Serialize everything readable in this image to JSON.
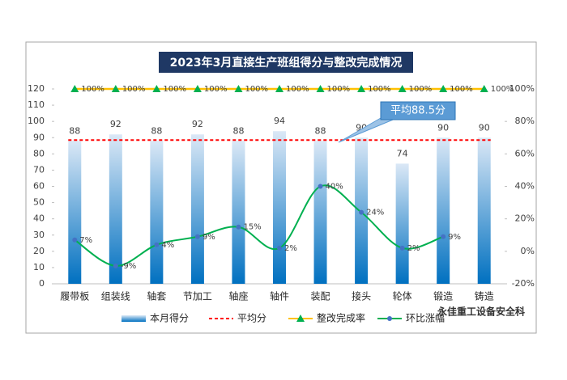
{
  "chart_data": {
    "type": "bar",
    "title": "2023年3月直接生产班组得分与整改完成情况",
    "categories": [
      "履带板",
      "组装线",
      "轴套",
      "节加工",
      "轴座",
      "轴件",
      "装配",
      "接头",
      "轮体",
      "锻造",
      "铸造"
    ],
    "series": [
      {
        "name": "本月得分",
        "type": "bar",
        "color": "#0070c0",
        "values": [
          88,
          92,
          88,
          92,
          88,
          94,
          88,
          90,
          74,
          90,
          90
        ]
      },
      {
        "name": "平均分",
        "type": "hline",
        "color": "#ff0000",
        "value": 88.5
      },
      {
        "name": "整改完成率",
        "type": "line",
        "axis": "y2",
        "color": "#ffc000",
        "marker_color": "#00b050",
        "values": [
          100,
          100,
          100,
          100,
          100,
          100,
          100,
          100,
          100,
          100,
          100
        ],
        "value_labels": [
          "100%",
          "100%",
          "100%",
          "100%",
          "100%",
          "100%",
          "100%",
          "100%",
          "100%",
          "100%",
          "100%"
        ]
      },
      {
        "name": "环比涨幅",
        "type": "smooth-line",
        "axis": "y2",
        "color": "#00b050",
        "marker_color": "#4472c4",
        "values": [
          7,
          -9,
          4,
          9,
          15,
          2,
          40,
          24,
          2,
          9,
          null
        ],
        "value_labels": [
          "7%",
          "-9%",
          "4%",
          "9%",
          "15%",
          "2%",
          "40%",
          "24%",
          "2%",
          "9%",
          null
        ]
      }
    ],
    "ylim": [
      0,
      120
    ],
    "yticks": [
      0,
      10,
      20,
      30,
      40,
      50,
      60,
      70,
      80,
      90,
      100,
      110,
      120
    ],
    "y2lim": [
      -20,
      100
    ],
    "y2ticks": [
      {
        "value": -20,
        "label": "-20%"
      },
      {
        "value": 0,
        "label": "0%"
      },
      {
        "value": 20,
        "label": "20%"
      },
      {
        "value": 40,
        "label": "40%"
      },
      {
        "value": 60,
        "label": "60%"
      },
      {
        "value": 80,
        "label": "80%"
      },
      {
        "value": 100,
        "label": "100%"
      }
    ],
    "annotation": "平均88.5分",
    "watermark": "永佳重工设备安全科",
    "legend": "bottom"
  }
}
